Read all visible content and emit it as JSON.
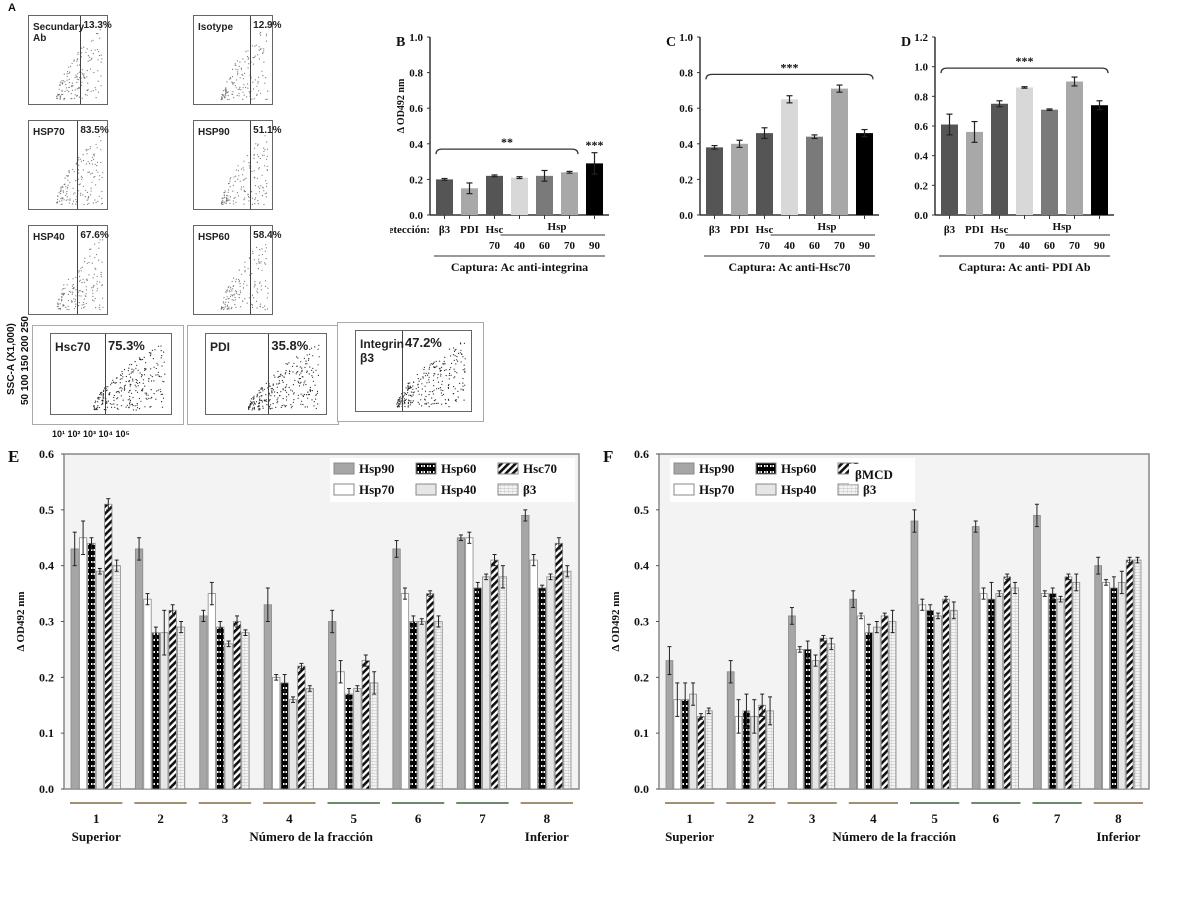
{
  "panel_labels": {
    "A": "A",
    "B": "B",
    "C": "C",
    "D": "D",
    "E": "E",
    "F": "F"
  },
  "flow_panel": {
    "y_axis_label": "SSC-A (X1,000)",
    "y_axis_ticks": "50 100 150 200 250",
    "x_axis_ticks": "10¹  10²  10³  10⁴  10⁵",
    "plots": [
      {
        "name": "Secundary Ab",
        "percent": "13.3%"
      },
      {
        "name": "Isotype",
        "percent": "12.9%"
      },
      {
        "name": "HSP70",
        "percent": "83.5%"
      },
      {
        "name": "HSP90",
        "percent": "51.1%"
      },
      {
        "name": "HSP40",
        "percent": "67.6%"
      },
      {
        "name": "HSP60",
        "percent": "58.4%"
      },
      {
        "name": "Hsc70",
        "percent": "75.3%"
      },
      {
        "name": "PDI",
        "percent": "35.8%"
      },
      {
        "name": "Integrin β3",
        "percent": "47.2%"
      }
    ]
  },
  "chart_data": [
    {
      "id": "B",
      "type": "bar",
      "ylabel": "Δ OD492 nm",
      "ylim": [
        0,
        1.0
      ],
      "yticks": [
        "0.0",
        "0.2",
        "0.4",
        "0.6",
        "0.8",
        "1.0"
      ],
      "categories": [
        "β3",
        "PDI",
        "Hsc 70",
        "Hsp 40",
        "Hsp 60",
        "Hsp 70",
        "Hsp 90"
      ],
      "values": [
        0.2,
        0.15,
        0.22,
        0.21,
        0.22,
        0.24,
        0.29
      ],
      "errors": [
        0.005,
        0.03,
        0.005,
        0.005,
        0.03,
        0.005,
        0.06
      ],
      "bar_colors": [
        "#555555",
        "#a8a8a8",
        "#555555",
        "#d8d8d8",
        "#7a7a7a",
        "#a8a8a8",
        "#000000"
      ],
      "detection_label": "Detección:",
      "tick_row1": [
        "β3",
        "PDI",
        "Hsc",
        "",
        "",
        "",
        ""
      ],
      "hsp_group_label": "Hsp",
      "tick_row2": [
        "",
        "",
        "70",
        "40",
        "60",
        "70",
        "90"
      ],
      "capture_label": "Captura: Ac anti-integrina",
      "significance": [
        {
          "from": 0,
          "to": 5,
          "label": "**",
          "y": 0.37
        },
        {
          "at": 6,
          "label": "***",
          "y": 0.37
        }
      ]
    },
    {
      "id": "C",
      "type": "bar",
      "ylabel": "",
      "ylim": [
        0,
        1.0
      ],
      "yticks": [
        "0.0",
        "0.2",
        "0.4",
        "0.6",
        "0.8",
        "1.0"
      ],
      "categories": [
        "β3",
        "PDI",
        "Hsc 70",
        "Hsp 40",
        "Hsp 60",
        "Hsp 70",
        "Hsp 90"
      ],
      "values": [
        0.38,
        0.4,
        0.46,
        0.65,
        0.44,
        0.71,
        0.46
      ],
      "errors": [
        0.01,
        0.02,
        0.03,
        0.02,
        0.01,
        0.02,
        0.02
      ],
      "bar_colors": [
        "#555555",
        "#a8a8a8",
        "#555555",
        "#d8d8d8",
        "#7a7a7a",
        "#a8a8a8",
        "#000000"
      ],
      "detection_label": "",
      "tick_row1": [
        "β3",
        "PDI",
        "Hsc",
        "",
        "",
        "",
        ""
      ],
      "hsp_group_label": "Hsp",
      "tick_row2": [
        "",
        "",
        "70",
        "40",
        "60",
        "70",
        "90"
      ],
      "capture_label": "Captura: Ac anti-Hsc70",
      "significance": [
        {
          "from": 0,
          "to": 6,
          "label": "***",
          "y": 0.79
        }
      ]
    },
    {
      "id": "D",
      "type": "bar",
      "ylabel": "",
      "ylim": [
        0,
        1.2
      ],
      "yticks": [
        "0.0",
        "0.2",
        "0.4",
        "0.6",
        "0.8",
        "1.0",
        "1.2"
      ],
      "categories": [
        "β3",
        "PDI",
        "Hsc 70",
        "Hsp 40",
        "Hsp 60",
        "Hsp 70",
        "Hsp 90"
      ],
      "values": [
        0.61,
        0.56,
        0.75,
        0.86,
        0.71,
        0.9,
        0.74
      ],
      "errors": [
        0.07,
        0.07,
        0.02,
        0.005,
        0.005,
        0.03,
        0.03
      ],
      "bar_colors": [
        "#555555",
        "#a8a8a8",
        "#555555",
        "#d8d8d8",
        "#7a7a7a",
        "#a8a8a8",
        "#000000"
      ],
      "detection_label": "",
      "tick_row1": [
        "β3",
        "PDI",
        "Hsc",
        "",
        "",
        "",
        ""
      ],
      "hsp_group_label": "Hsp",
      "tick_row2": [
        "",
        "",
        "70",
        "40",
        "60",
        "70",
        "90"
      ],
      "capture_label": "Captura: Ac anti- PDI Ab",
      "significance": [
        {
          "from": 0,
          "to": 6,
          "label": "***",
          "y": 0.99
        }
      ]
    },
    {
      "id": "E",
      "type": "bar",
      "title": "",
      "ylabel": "Δ OD492 nm",
      "xlabel": "Número de la fracción",
      "ylim": [
        0,
        0.6
      ],
      "yticks": [
        "0.0",
        "0.1",
        "0.2",
        "0.3",
        "0.4",
        "0.5",
        "0.6"
      ],
      "categories": [
        "1",
        "2",
        "3",
        "4",
        "5",
        "6",
        "7",
        "8"
      ],
      "x_sublabels": {
        "first": "Superior",
        "last": "Inferior"
      },
      "legend": "top-right",
      "series": [
        {
          "name": "Hsp90",
          "pattern": "gray",
          "values": [
            0.43,
            0.43,
            0.31,
            0.33,
            0.3,
            0.43,
            0.45,
            0.49
          ],
          "errors": [
            0.03,
            0.02,
            0.01,
            0.03,
            0.02,
            0.015,
            0.005,
            0.01
          ]
        },
        {
          "name": "Hsp70",
          "pattern": "white",
          "values": [
            0.45,
            0.34,
            0.35,
            0.2,
            0.21,
            0.35,
            0.45,
            0.41
          ],
          "errors": [
            0.03,
            0.01,
            0.02,
            0.005,
            0.02,
            0.01,
            0.01,
            0.01
          ]
        },
        {
          "name": "Hsp60",
          "pattern": "brick",
          "values": [
            0.44,
            0.28,
            0.29,
            0.19,
            0.17,
            0.3,
            0.36,
            0.36
          ],
          "errors": [
            0.01,
            0.01,
            0.01,
            0.015,
            0.01,
            0.01,
            0.01,
            0.005
          ]
        },
        {
          "name": "Hsp40",
          "pattern": "light",
          "values": [
            0.39,
            0.28,
            0.26,
            0.16,
            0.18,
            0.3,
            0.38,
            0.38
          ],
          "errors": [
            0.005,
            0.04,
            0.005,
            0.005,
            0.005,
            0.005,
            0.005,
            0.005
          ]
        },
        {
          "name": "Hsc70",
          "pattern": "diag",
          "values": [
            0.51,
            0.32,
            0.3,
            0.22,
            0.23,
            0.35,
            0.41,
            0.44
          ],
          "errors": [
            0.01,
            0.01,
            0.01,
            0.005,
            0.01,
            0.005,
            0.01,
            0.01
          ]
        },
        {
          "name": "β3",
          "pattern": "vert",
          "values": [
            0.4,
            0.29,
            0.28,
            0.18,
            0.19,
            0.3,
            0.38,
            0.39
          ],
          "errors": [
            0.01,
            0.01,
            0.005,
            0.005,
            0.02,
            0.01,
            0.02,
            0.01
          ]
        }
      ]
    },
    {
      "id": "F",
      "type": "bar",
      "title": "βMCD",
      "ylabel": "Δ OD492 nm",
      "xlabel": "Número de la fracción",
      "ylim": [
        0,
        0.6
      ],
      "yticks": [
        "0.0",
        "0.1",
        "0.2",
        "0.3",
        "0.4",
        "0.5",
        "0.6"
      ],
      "categories": [
        "1",
        "2",
        "3",
        "4",
        "5",
        "6",
        "7",
        "8"
      ],
      "x_sublabels": {
        "first": "Superior",
        "last": "Inferior"
      },
      "legend": "top-left",
      "series": [
        {
          "name": "Hsp90",
          "pattern": "gray",
          "values": [
            0.23,
            0.21,
            0.31,
            0.34,
            0.48,
            0.47,
            0.49,
            0.4
          ],
          "errors": [
            0.025,
            0.02,
            0.015,
            0.015,
            0.02,
            0.01,
            0.02,
            0.015
          ]
        },
        {
          "name": "Hsp70",
          "pattern": "white",
          "values": [
            0.16,
            0.13,
            0.25,
            0.31,
            0.33,
            0.35,
            0.35,
            0.37
          ],
          "errors": [
            0.03,
            0.03,
            0.005,
            0.005,
            0.01,
            0.01,
            0.005,
            0.005
          ]
        },
        {
          "name": "Hsp60",
          "pattern": "brick",
          "values": [
            0.16,
            0.14,
            0.25,
            0.28,
            0.32,
            0.34,
            0.35,
            0.36
          ],
          "errors": [
            0.03,
            0.03,
            0.015,
            0.015,
            0.01,
            0.03,
            0.01,
            0.02
          ]
        },
        {
          "name": "Hsp40",
          "pattern": "light",
          "values": [
            0.17,
            0.13,
            0.23,
            0.29,
            0.31,
            0.35,
            0.34,
            0.37
          ],
          "errors": [
            0.02,
            0.03,
            0.01,
            0.01,
            0.005,
            0.005,
            0.005,
            0.02
          ]
        },
        {
          "name": "Hsc70",
          "pattern": "diag",
          "values": [
            0.13,
            0.15,
            0.27,
            0.31,
            0.34,
            0.38,
            0.38,
            0.41
          ],
          "errors": [
            0.005,
            0.02,
            0.005,
            0.005,
            0.005,
            0.005,
            0.005,
            0.005
          ]
        },
        {
          "name": "β3",
          "pattern": "vert",
          "values": [
            0.14,
            0.14,
            0.26,
            0.3,
            0.32,
            0.36,
            0.37,
            0.41
          ],
          "errors": [
            0.005,
            0.025,
            0.01,
            0.02,
            0.015,
            0.01,
            0.015,
            0.005
          ]
        }
      ]
    }
  ]
}
